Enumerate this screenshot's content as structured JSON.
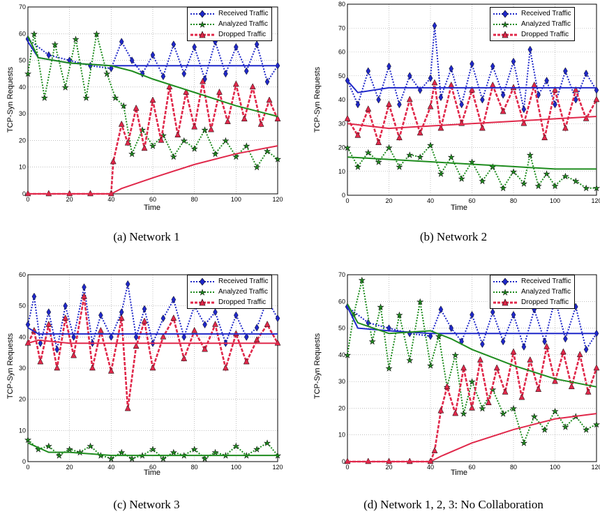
{
  "figure": {
    "legend": [
      "Received Traffic",
      "Analyzed Traffic",
      "Dropped Traffic"
    ],
    "colors": {
      "received": "#1f28c9",
      "analyzed": "#1e8c1e",
      "dropped": "#e0284a"
    }
  },
  "panels": [
    {
      "caption": "(a) Network 1",
      "ylabel": "TCP-Syn Requests",
      "xlabel": "Time"
    },
    {
      "caption": "(b) Network 2",
      "ylabel": "TCP-Syn Requests",
      "xlabel": "Time"
    },
    {
      "caption": "(c) Network 3",
      "ylabel": "TCP-Syn Requests",
      "xlabel": "Time"
    },
    {
      "caption": "(d) Network 1, 2, 3: No Collaboration",
      "ylabel": "TCP-Syn Requests",
      "xlabel": "Time"
    }
  ],
  "chart_data": [
    {
      "type": "line",
      "xlabel": "Time",
      "ylabel": "TCP-Syn Requests",
      "xlim": [
        0,
        120
      ],
      "ylim": [
        0,
        70
      ],
      "xticks": [
        0,
        20,
        40,
        60,
        80,
        100,
        120
      ],
      "yticks": [
        0,
        10,
        20,
        30,
        40,
        50,
        60,
        70
      ],
      "grid": true,
      "legend_position": "top-right",
      "series": [
        {
          "name": "Received Traffic",
          "style": "markers",
          "x": [
            0,
            10,
            20,
            30,
            40,
            45,
            50,
            55,
            60,
            65,
            70,
            75,
            80,
            85,
            90,
            95,
            100,
            105,
            110,
            115,
            120
          ],
          "y": [
            58,
            52,
            50,
            48,
            47,
            57,
            50,
            45,
            52,
            44,
            56,
            45,
            55,
            43,
            57,
            45,
            55,
            46,
            56,
            42,
            48
          ]
        },
        {
          "name": "Received Traffic",
          "style": "trend",
          "x": [
            0,
            5,
            20,
            40,
            60,
            80,
            100,
            120
          ],
          "y": [
            57,
            51,
            49,
            48,
            48,
            48,
            48,
            48
          ]
        },
        {
          "name": "Analyzed Traffic",
          "style": "markers",
          "x": [
            0,
            3,
            8,
            13,
            18,
            23,
            28,
            33,
            38,
            42,
            46,
            50,
            55,
            60,
            65,
            70,
            75,
            80,
            85,
            90,
            95,
            100,
            105,
            110,
            115,
            120
          ],
          "y": [
            45,
            60,
            36,
            56,
            40,
            58,
            36,
            60,
            45,
            36,
            33,
            15,
            24,
            18,
            22,
            14,
            20,
            17,
            24,
            15,
            20,
            14,
            18,
            10,
            16,
            13
          ]
        },
        {
          "name": "Analyzed Traffic",
          "style": "trend",
          "x": [
            0,
            5,
            20,
            40,
            50,
            60,
            80,
            100,
            120
          ],
          "y": [
            59,
            51,
            49,
            48,
            46,
            43,
            38,
            33,
            29
          ]
        },
        {
          "name": "Dropped Traffic",
          "style": "markers",
          "x": [
            0,
            10,
            20,
            30,
            40,
            41,
            45,
            48,
            52,
            56,
            60,
            64,
            68,
            72,
            76,
            80,
            84,
            88,
            92,
            96,
            100,
            104,
            108,
            112,
            116,
            120
          ],
          "y": [
            0,
            0,
            0,
            0,
            0,
            12,
            26,
            19,
            32,
            17,
            35,
            20,
            40,
            22,
            38,
            25,
            42,
            24,
            38,
            27,
            41,
            28,
            40,
            26,
            35,
            28
          ]
        },
        {
          "name": "Dropped Traffic",
          "style": "trend",
          "x": [
            0,
            40,
            45,
            60,
            80,
            100,
            120
          ],
          "y": [
            0,
            0,
            2,
            6,
            11,
            15,
            18
          ]
        }
      ]
    },
    {
      "type": "line",
      "xlabel": "Time",
      "ylabel": "TCP-Syn Requests",
      "xlim": [
        0,
        120
      ],
      "ylim": [
        0,
        80
      ],
      "xticks": [
        0,
        20,
        40,
        60,
        80,
        100,
        120
      ],
      "yticks": [
        0,
        10,
        20,
        30,
        40,
        50,
        60,
        70,
        80
      ],
      "grid": true,
      "legend_position": "top-right",
      "series": [
        {
          "name": "Received Traffic",
          "style": "markers",
          "x": [
            0,
            5,
            10,
            15,
            20,
            25,
            30,
            35,
            40,
            42,
            45,
            50,
            55,
            60,
            65,
            70,
            75,
            80,
            85,
            88,
            92,
            96,
            100,
            105,
            110,
            115,
            120
          ],
          "y": [
            48,
            38,
            52,
            40,
            54,
            38,
            50,
            44,
            49,
            71,
            41,
            53,
            38,
            55,
            40,
            54,
            42,
            56,
            36,
            61,
            42,
            48,
            38,
            52,
            40,
            51,
            44
          ]
        },
        {
          "name": "Received Traffic",
          "style": "trend",
          "x": [
            0,
            5,
            20,
            40,
            60,
            80,
            100,
            120
          ],
          "y": [
            48,
            43,
            45,
            45,
            45,
            45,
            45,
            45
          ]
        },
        {
          "name": "Analyzed Traffic",
          "style": "markers",
          "x": [
            0,
            5,
            10,
            15,
            20,
            25,
            30,
            35,
            40,
            45,
            50,
            55,
            60,
            65,
            70,
            75,
            80,
            85,
            88,
            92,
            96,
            100,
            105,
            110,
            115,
            120
          ],
          "y": [
            20,
            12,
            18,
            14,
            20,
            12,
            17,
            16,
            21,
            9,
            16,
            7,
            14,
            6,
            12,
            3,
            10,
            5,
            17,
            4,
            9,
            4,
            8,
            6,
            3,
            3
          ]
        },
        {
          "name": "Analyzed Traffic",
          "style": "trend",
          "x": [
            0,
            20,
            40,
            60,
            80,
            100,
            120
          ],
          "y": [
            16,
            15,
            14,
            13,
            12,
            11,
            11
          ]
        },
        {
          "name": "Dropped Traffic",
          "style": "markers",
          "x": [
            0,
            5,
            10,
            15,
            20,
            25,
            30,
            35,
            40,
            42,
            45,
            50,
            55,
            60,
            65,
            70,
            75,
            80,
            85,
            90,
            95,
            100,
            105,
            110,
            115,
            120
          ],
          "y": [
            32,
            25,
            36,
            22,
            38,
            24,
            40,
            26,
            37,
            47,
            28,
            46,
            30,
            44,
            28,
            46,
            35,
            45,
            30,
            46,
            24,
            44,
            28,
            44,
            32,
            40
          ]
        },
        {
          "name": "Dropped Traffic",
          "style": "trend",
          "x": [
            0,
            20,
            40,
            60,
            80,
            100,
            120
          ],
          "y": [
            30,
            28,
            29,
            30,
            31,
            32,
            33
          ]
        }
      ]
    },
    {
      "type": "line",
      "xlabel": "Time",
      "ylabel": "TCP-Syn Requests",
      "xlim": [
        0,
        120
      ],
      "ylim": [
        0,
        60
      ],
      "xticks": [
        0,
        20,
        40,
        60,
        80,
        100,
        120
      ],
      "yticks": [
        0,
        10,
        20,
        30,
        40,
        50,
        60
      ],
      "grid": true,
      "legend_position": "top-right",
      "series": [
        {
          "name": "Received Traffic",
          "style": "markers",
          "x": [
            0,
            3,
            6,
            10,
            14,
            18,
            22,
            27,
            31,
            35,
            40,
            45,
            48,
            52,
            56,
            60,
            65,
            70,
            75,
            80,
            85,
            90,
            95,
            100,
            105,
            110,
            115,
            120
          ],
          "y": [
            44,
            53,
            38,
            48,
            36,
            50,
            40,
            56,
            38,
            47,
            40,
            48,
            57,
            40,
            49,
            38,
            46,
            52,
            40,
            50,
            44,
            48,
            38,
            47,
            40,
            43,
            52,
            46
          ]
        },
        {
          "name": "Received Traffic",
          "style": "trend",
          "x": [
            0,
            5,
            20,
            40,
            60,
            80,
            100,
            120
          ],
          "y": [
            43,
            41,
            41,
            41,
            41,
            41,
            41,
            41
          ]
        },
        {
          "name": "Analyzed Traffic",
          "style": "markers",
          "x": [
            0,
            5,
            10,
            15,
            20,
            25,
            30,
            35,
            40,
            45,
            50,
            55,
            60,
            65,
            70,
            75,
            80,
            85,
            90,
            95,
            100,
            105,
            110,
            115,
            120
          ],
          "y": [
            7,
            4,
            5,
            2,
            4,
            3,
            5,
            2,
            1,
            3,
            1,
            2,
            4,
            1,
            3,
            2,
            4,
            1,
            3,
            2,
            5,
            2,
            4,
            6,
            2
          ]
        },
        {
          "name": "Analyzed Traffic",
          "style": "trend",
          "x": [
            0,
            10,
            20,
            40,
            60,
            80,
            100,
            120
          ],
          "y": [
            6,
            3,
            3,
            2,
            2,
            2,
            2,
            2
          ]
        },
        {
          "name": "Dropped Traffic",
          "style": "markers",
          "x": [
            0,
            3,
            6,
            10,
            14,
            18,
            22,
            27,
            31,
            35,
            40,
            45,
            48,
            52,
            56,
            60,
            65,
            70,
            75,
            80,
            85,
            90,
            95,
            100,
            105,
            110,
            115,
            120
          ],
          "y": [
            38,
            42,
            32,
            44,
            30,
            46,
            34,
            53,
            30,
            42,
            29,
            46,
            17,
            37,
            45,
            30,
            40,
            46,
            33,
            42,
            36,
            44,
            30,
            41,
            32,
            39,
            44,
            38
          ]
        },
        {
          "name": "Dropped Traffic",
          "style": "trend",
          "x": [
            0,
            5,
            20,
            40,
            60,
            80,
            100,
            120
          ],
          "y": [
            38,
            39,
            38,
            38,
            38,
            38,
            38,
            38
          ]
        }
      ]
    },
    {
      "type": "line",
      "xlabel": "Time",
      "ylabel": "TCP-Syn Requests",
      "xlim": [
        0,
        120
      ],
      "ylim": [
        0,
        70
      ],
      "xticks": [
        0,
        20,
        40,
        60,
        80,
        100,
        120
      ],
      "yticks": [
        0,
        10,
        20,
        30,
        40,
        50,
        60,
        70
      ],
      "grid": true,
      "legend_position": "top-right",
      "series": [
        {
          "name": "Received Traffic",
          "style": "markers",
          "x": [
            0,
            10,
            20,
            30,
            40,
            45,
            50,
            55,
            60,
            65,
            70,
            75,
            80,
            85,
            90,
            95,
            100,
            105,
            110,
            115,
            120
          ],
          "y": [
            58,
            52,
            50,
            48,
            47,
            57,
            50,
            45,
            55,
            44,
            56,
            45,
            55,
            43,
            57,
            45,
            61,
            46,
            58,
            42,
            48
          ]
        },
        {
          "name": "Received Traffic",
          "style": "trend",
          "x": [
            0,
            5,
            20,
            40,
            60,
            80,
            100,
            120
          ],
          "y": [
            58,
            50,
            49,
            48,
            48,
            48,
            48,
            48
          ]
        },
        {
          "name": "Analyzed Traffic",
          "style": "markers",
          "x": [
            0,
            3,
            7,
            12,
            16,
            20,
            25,
            30,
            35,
            40,
            44,
            48,
            52,
            56,
            60,
            65,
            70,
            75,
            80,
            85,
            90,
            95,
            100,
            105,
            110,
            115,
            120
          ],
          "y": [
            40,
            55,
            68,
            45,
            58,
            35,
            55,
            38,
            60,
            36,
            47,
            28,
            40,
            18,
            30,
            20,
            27,
            18,
            20,
            7,
            17,
            12,
            19,
            13,
            17,
            12,
            14
          ]
        },
        {
          "name": "Analyzed Traffic",
          "style": "trend",
          "x": [
            0,
            5,
            20,
            40,
            50,
            60,
            80,
            100,
            120
          ],
          "y": [
            59,
            52,
            48,
            49,
            46,
            42,
            36,
            31,
            28
          ]
        },
        {
          "name": "Dropped Traffic",
          "style": "markers",
          "x": [
            0,
            10,
            20,
            30,
            40,
            42,
            45,
            48,
            52,
            56,
            60,
            64,
            68,
            72,
            76,
            80,
            84,
            88,
            92,
            96,
            100,
            104,
            108,
            112,
            116,
            120
          ],
          "y": [
            0,
            0,
            0,
            0,
            0,
            4,
            19,
            28,
            18,
            35,
            20,
            38,
            22,
            35,
            26,
            41,
            24,
            38,
            27,
            43,
            30,
            41,
            28,
            40,
            26,
            35
          ]
        },
        {
          "name": "Dropped Traffic",
          "style": "trend",
          "x": [
            0,
            40,
            45,
            60,
            80,
            100,
            120
          ],
          "y": [
            0,
            0,
            2,
            7,
            12,
            16,
            18
          ]
        }
      ]
    }
  ]
}
